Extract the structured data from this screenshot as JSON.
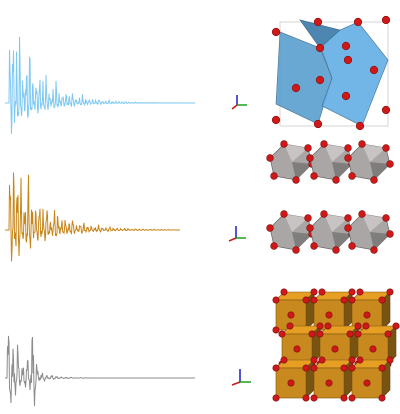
{
  "traces": [
    {
      "color": "#7ec8f2"
    },
    {
      "color": "#c8861a"
    },
    {
      "color": "#8c8c8c"
    }
  ],
  "structures": [
    {
      "color": "#5a9fd0"
    },
    {
      "color": "#aaa6a6"
    },
    {
      "color": "#c88a1e"
    }
  ],
  "atom_color": "#d01818"
}
